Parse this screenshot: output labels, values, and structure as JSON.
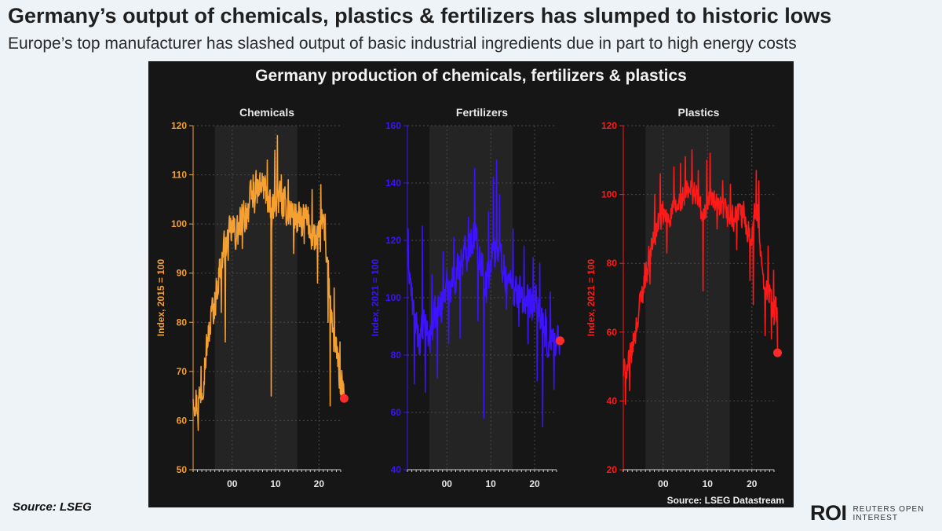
{
  "headline": "Germany’s output of chemicals, plastics & fertilizers has slumped to historic lows",
  "subheadline": "Europe’s top manufacturer has slashed output of basic industrial ingredients due in part to high energy costs",
  "source_left": "Source: LSEG",
  "logo": {
    "mark": "ROI",
    "line1": "REUTERS OPEN",
    "line2": "INTEREST"
  },
  "colors": {
    "panel_bg": "#161616",
    "shade": "#242424",
    "grid": "#4a4a4a",
    "text": "#e6e6e6",
    "endpoint": "#ff2a2a"
  },
  "chart_data": {
    "title": "Germany production of chemicals, fertilizers & plastics",
    "source": "Source: LSEG Datastream",
    "type": "line",
    "x_ticks": [
      "00",
      "10",
      "20"
    ],
    "x_range": [
      1991,
      2025
    ],
    "shaded_range": [
      1996,
      2015
    ],
    "panels": [
      {
        "title": "Chemicals",
        "ylabel": "Index, 2015 = 100",
        "color": "#f5a030",
        "ylim": [
          50,
          120
        ],
        "yticks": [
          50,
          60,
          70,
          80,
          90,
          100,
          110,
          120
        ],
        "anchors": [
          [
            1991.0,
            66
          ],
          [
            1992.0,
            63
          ],
          [
            1993.0,
            67
          ],
          [
            1994.0,
            74
          ],
          [
            1995.0,
            80
          ],
          [
            1996.0,
            84
          ],
          [
            1997.0,
            90
          ],
          [
            1998.0,
            94
          ],
          [
            1999.0,
            96
          ],
          [
            2000.0,
            99
          ],
          [
            2001.0,
            98
          ],
          [
            2002.0,
            100
          ],
          [
            2003.0,
            102
          ],
          [
            2004.0,
            104
          ],
          [
            2005.0,
            106
          ],
          [
            2006.0,
            107
          ],
          [
            2007.0,
            108
          ],
          [
            2008.0,
            106
          ],
          [
            2009.0,
            101
          ],
          [
            2010.0,
            106
          ],
          [
            2011.0,
            105
          ],
          [
            2012.0,
            103
          ],
          [
            2013.0,
            103
          ],
          [
            2014.0,
            102
          ],
          [
            2015.0,
            101
          ],
          [
            2016.0,
            100
          ],
          [
            2017.0,
            101
          ],
          [
            2018.0,
            99
          ],
          [
            2019.0,
            97
          ],
          [
            2020.0,
            96
          ],
          [
            2021.0,
            101
          ],
          [
            2022.0,
            92
          ],
          [
            2023.0,
            78
          ],
          [
            2024.0,
            74
          ],
          [
            2025.2,
            66
          ]
        ],
        "noise": 3.5,
        "spikes": [
          [
            1991.6,
            62
          ],
          [
            1992.2,
            58
          ],
          [
            1992.8,
            71
          ],
          [
            1994.6,
            77
          ],
          [
            1995.4,
            85
          ],
          [
            1997.5,
            82
          ],
          [
            1998.4,
            76
          ],
          [
            2000.6,
            101
          ],
          [
            2002.3,
            95
          ],
          [
            2004.8,
            110
          ],
          [
            2008.1,
            113
          ],
          [
            2009.0,
            65
          ],
          [
            2009.8,
            115
          ],
          [
            2010.4,
            118
          ],
          [
            2011.3,
            110
          ],
          [
            2012.9,
            109
          ],
          [
            2014.2,
            94
          ],
          [
            2016.6,
            96
          ],
          [
            2018.4,
            107
          ],
          [
            2019.7,
            88
          ],
          [
            2020.4,
            108
          ],
          [
            2021.4,
            102
          ],
          [
            2022.1,
            80
          ],
          [
            2022.6,
            63
          ],
          [
            2023.5,
            87
          ],
          [
            2024.3,
            71
          ],
          [
            2024.8,
            76
          ]
        ],
        "last": [
          2025.8,
          64.5
        ]
      },
      {
        "title": "Fertilizers",
        "ylabel": "Index, 2021 = 100",
        "color": "#3d12ff",
        "ylim": [
          40,
          160
        ],
        "yticks": [
          40,
          60,
          80,
          100,
          120,
          140,
          160
        ],
        "anchors": [
          [
            1991.0,
            118
          ],
          [
            1992.0,
            100
          ],
          [
            1993.0,
            88
          ],
          [
            1994.0,
            86
          ],
          [
            1995.0,
            90
          ],
          [
            1996.0,
            86
          ],
          [
            1997.0,
            92
          ],
          [
            1998.0,
            95
          ],
          [
            1999.0,
            100
          ],
          [
            2000.0,
            103
          ],
          [
            2001.0,
            106
          ],
          [
            2002.0,
            108
          ],
          [
            2003.0,
            112
          ],
          [
            2004.0,
            115
          ],
          [
            2005.0,
            118
          ],
          [
            2006.0,
            122
          ],
          [
            2007.0,
            118
          ],
          [
            2008.0,
            112
          ],
          [
            2009.0,
            104
          ],
          [
            2010.0,
            112
          ],
          [
            2011.0,
            118
          ],
          [
            2012.0,
            116
          ],
          [
            2013.0,
            110
          ],
          [
            2014.0,
            106
          ],
          [
            2015.0,
            104
          ],
          [
            2016.0,
            102
          ],
          [
            2017.0,
            100
          ],
          [
            2018.0,
            98
          ],
          [
            2019.0,
            96
          ],
          [
            2020.0,
            98
          ],
          [
            2021.0,
            96
          ],
          [
            2022.0,
            88
          ],
          [
            2023.0,
            84
          ],
          [
            2024.0,
            86
          ],
          [
            2025.2,
            84
          ]
        ],
        "noise": 6,
        "spikes": [
          [
            1991.2,
            124
          ],
          [
            1992.6,
            70
          ],
          [
            1994.4,
            125
          ],
          [
            1995.1,
            67
          ],
          [
            1996.6,
            108
          ],
          [
            1997.8,
            72
          ],
          [
            1999.2,
            116
          ],
          [
            2000.4,
            84
          ],
          [
            2001.6,
            121
          ],
          [
            2003.0,
            86
          ],
          [
            2004.9,
            128
          ],
          [
            2006.3,
            145
          ],
          [
            2007.1,
            92
          ],
          [
            2008.4,
            58
          ],
          [
            2009.5,
            130
          ],
          [
            2010.6,
            142
          ],
          [
            2011.3,
            148
          ],
          [
            2012.0,
            136
          ],
          [
            2013.6,
            96
          ],
          [
            2015.1,
            124
          ],
          [
            2016.4,
            90
          ],
          [
            2017.6,
            118
          ],
          [
            2018.5,
            84
          ],
          [
            2019.7,
            114
          ],
          [
            2020.6,
            71
          ],
          [
            2021.2,
            112
          ],
          [
            2021.8,
            55
          ],
          [
            2022.5,
            96
          ],
          [
            2023.6,
            102
          ],
          [
            2024.4,
            68
          ]
        ],
        "last": [
          2025.8,
          85
        ]
      },
      {
        "title": "Plastics",
        "ylabel": "Index, 2021 = 100",
        "color": "#ff1a1a",
        "ylim": [
          20,
          120
        ],
        "yticks": [
          20,
          40,
          60,
          80,
          100,
          120
        ],
        "anchors": [
          [
            1991.0,
            48
          ],
          [
            1992.0,
            50
          ],
          [
            1993.0,
            55
          ],
          [
            1994.0,
            62
          ],
          [
            1995.0,
            70
          ],
          [
            1996.0,
            76
          ],
          [
            1997.0,
            83
          ],
          [
            1998.0,
            88
          ],
          [
            1999.0,
            92
          ],
          [
            2000.0,
            94
          ],
          [
            2001.0,
            93
          ],
          [
            2002.0,
            95
          ],
          [
            2003.0,
            96
          ],
          [
            2004.0,
            98
          ],
          [
            2005.0,
            100
          ],
          [
            2006.0,
            101
          ],
          [
            2007.0,
            101
          ],
          [
            2008.0,
            98
          ],
          [
            2009.0,
            92
          ],
          [
            2010.0,
            99
          ],
          [
            2011.0,
            99
          ],
          [
            2012.0,
            96
          ],
          [
            2013.0,
            95
          ],
          [
            2014.0,
            95
          ],
          [
            2015.0,
            93
          ],
          [
            2016.0,
            93
          ],
          [
            2017.0,
            95
          ],
          [
            2018.0,
            93
          ],
          [
            2019.0,
            90
          ],
          [
            2020.0,
            89
          ],
          [
            2021.0,
            97
          ],
          [
            2022.0,
            84
          ],
          [
            2023.0,
            72
          ],
          [
            2024.0,
            71
          ],
          [
            2025.2,
            66
          ]
        ],
        "noise": 3.5,
        "spikes": [
          [
            1991.5,
            39
          ],
          [
            1992.4,
            43
          ],
          [
            1993.1,
            57
          ],
          [
            1994.5,
            66
          ],
          [
            1995.8,
            80
          ],
          [
            1997.0,
            74
          ],
          [
            1998.1,
            100
          ],
          [
            1999.3,
            106
          ],
          [
            2000.8,
            83
          ],
          [
            2002.4,
            108
          ],
          [
            2003.9,
            109
          ],
          [
            2005.0,
            111
          ],
          [
            2006.5,
            113
          ],
          [
            2007.9,
            107
          ],
          [
            2009.0,
            72
          ],
          [
            2009.8,
            110
          ],
          [
            2010.6,
            112
          ],
          [
            2012.2,
            90
          ],
          [
            2013.4,
            104
          ],
          [
            2015.2,
            103
          ],
          [
            2016.6,
            84
          ],
          [
            2018.2,
            98
          ],
          [
            2019.6,
            75
          ],
          [
            2020.3,
            68
          ],
          [
            2021.0,
            107
          ],
          [
            2021.6,
            104
          ],
          [
            2022.4,
            78
          ],
          [
            2023.0,
            59
          ],
          [
            2023.7,
            85
          ],
          [
            2024.4,
            58
          ],
          [
            2024.9,
            78
          ]
        ],
        "last": [
          2025.8,
          54
        ]
      }
    ]
  }
}
